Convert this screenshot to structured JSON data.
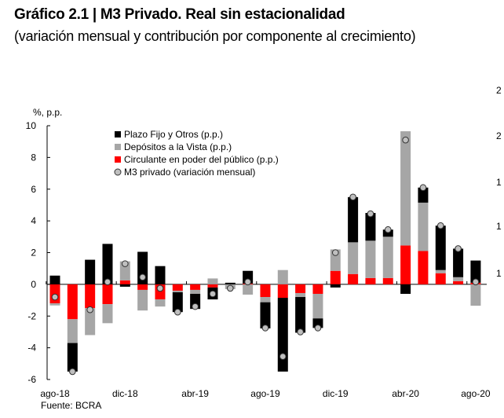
{
  "header": {
    "title": "Gráfico 2.1 | M3 Privado. Real sin estacionalidad",
    "subtitle": "(variación mensual y contribución por componente al crecimiento)"
  },
  "chart_data": {
    "type": "bar",
    "stacked": true,
    "ylabel": "%, p.p.",
    "ylim": [
      -6,
      10
    ],
    "yticks": [
      10,
      8,
      6,
      4,
      2,
      0,
      -2,
      -4,
      -6
    ],
    "right_axis_partial_labels": [
      "2",
      "2",
      "1",
      "1",
      "1"
    ],
    "x_tick_labels": [
      "ago-18",
      "dic-18",
      "abr-19",
      "ago-19",
      "dic-19",
      "abr-20",
      "ago-20"
    ],
    "categories": [
      "ago-18",
      "sep-18",
      "oct-18",
      "nov-18",
      "dic-18",
      "ene-19",
      "feb-19",
      "mar-19",
      "abr-19",
      "may-19",
      "jun-19",
      "jul-19",
      "ago-19",
      "sep-19",
      "oct-19",
      "nov-19",
      "dic-19",
      "ene-20",
      "feb-20",
      "mar-20",
      "abr-20",
      "may-20",
      "jun-20",
      "jul-20",
      "ago-20"
    ],
    "legend_position": "top-left",
    "grid": false,
    "series": [
      {
        "name": "Circulante en poder del público (p.p.)",
        "kind": "bar",
        "color": "#ff0000",
        "values": [
          -1.2,
          -2.2,
          -1.5,
          -1.25,
          0.25,
          -0.35,
          -0.95,
          -0.4,
          -0.35,
          -0.2,
          0,
          0.05,
          -0.8,
          -0.85,
          -0.55,
          -0.6,
          0.85,
          0.65,
          0.4,
          0.4,
          2.45,
          2.1,
          0.7,
          0.2,
          0.1
        ]
      },
      {
        "name": "Depósitos a la Vista (p.p.)",
        "kind": "bar",
        "color": "#a6a6a6",
        "values": [
          -0.13,
          -1.5,
          -1.7,
          -1.2,
          1.2,
          -1.3,
          -0.45,
          -0.1,
          -0.25,
          0.37,
          -0.3,
          -0.65,
          -0.33,
          0.9,
          -0.25,
          -1.55,
          1.35,
          2.0,
          2.35,
          2.6,
          7.2,
          3.05,
          0.2,
          0.25,
          -1.35
        ]
      },
      {
        "name": "Plazo Fijo y Otros (p.p.)",
        "kind": "bar",
        "color": "#000000",
        "values": [
          0.55,
          -1.8,
          1.55,
          2.55,
          -0.15,
          2.05,
          1.15,
          -1.25,
          -0.95,
          -0.75,
          0.1,
          0.8,
          -1.65,
          -4.65,
          -2.25,
          -0.6,
          -0.2,
          2.85,
          1.75,
          0.45,
          -0.6,
          0.95,
          2.8,
          1.8,
          1.4
        ]
      },
      {
        "name": "M3 privado (variación mensual)",
        "kind": "marker",
        "color": "#bfbfbf",
        "values": [
          -0.8,
          -5.5,
          -1.6,
          0.15,
          1.3,
          0.45,
          -0.25,
          -1.75,
          -1.4,
          -0.6,
          -0.25,
          0.15,
          -2.75,
          -4.55,
          -3.0,
          -2.75,
          2.0,
          5.5,
          4.45,
          3.45,
          9.1,
          6.1,
          3.7,
          2.25,
          0.15
        ]
      }
    ],
    "legend_order": [
      "Plazo Fijo y Otros (p.p.)",
      "Depósitos a la Vista (p.p.)",
      "Circulante en poder del público (p.p.)",
      "M3 privado (variación mensual)"
    ]
  },
  "footer": {
    "source": "Fuente: BCRA"
  }
}
